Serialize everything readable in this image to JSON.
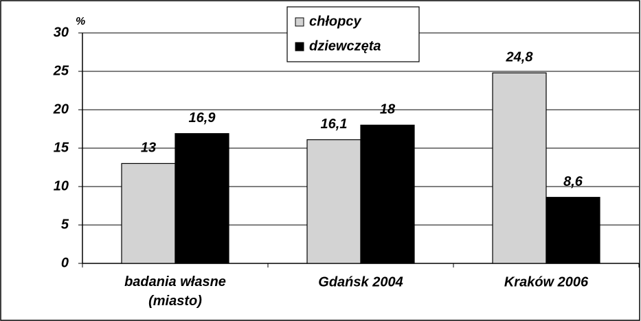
{
  "chart_data": {
    "type": "bar",
    "y_label": "%",
    "categories": [
      "badania własne\n(miasto)",
      "Gdańsk 2004",
      "Kraków 2006"
    ],
    "series": [
      {
        "name": "chłopcy",
        "color": "#d3d3d3",
        "values": [
          13,
          16.1,
          24.8
        ],
        "value_labels": [
          "13",
          "16,1",
          "24,8"
        ]
      },
      {
        "name": "dziewczęta",
        "color": "#000000",
        "values": [
          16.9,
          18,
          8.6
        ],
        "value_labels": [
          "16,9",
          "18",
          "8,6"
        ]
      }
    ],
    "ylim": [
      0,
      30
    ],
    "yticks": [
      0,
      5,
      10,
      15,
      20,
      25,
      30
    ],
    "grid": true,
    "legend": "top"
  }
}
